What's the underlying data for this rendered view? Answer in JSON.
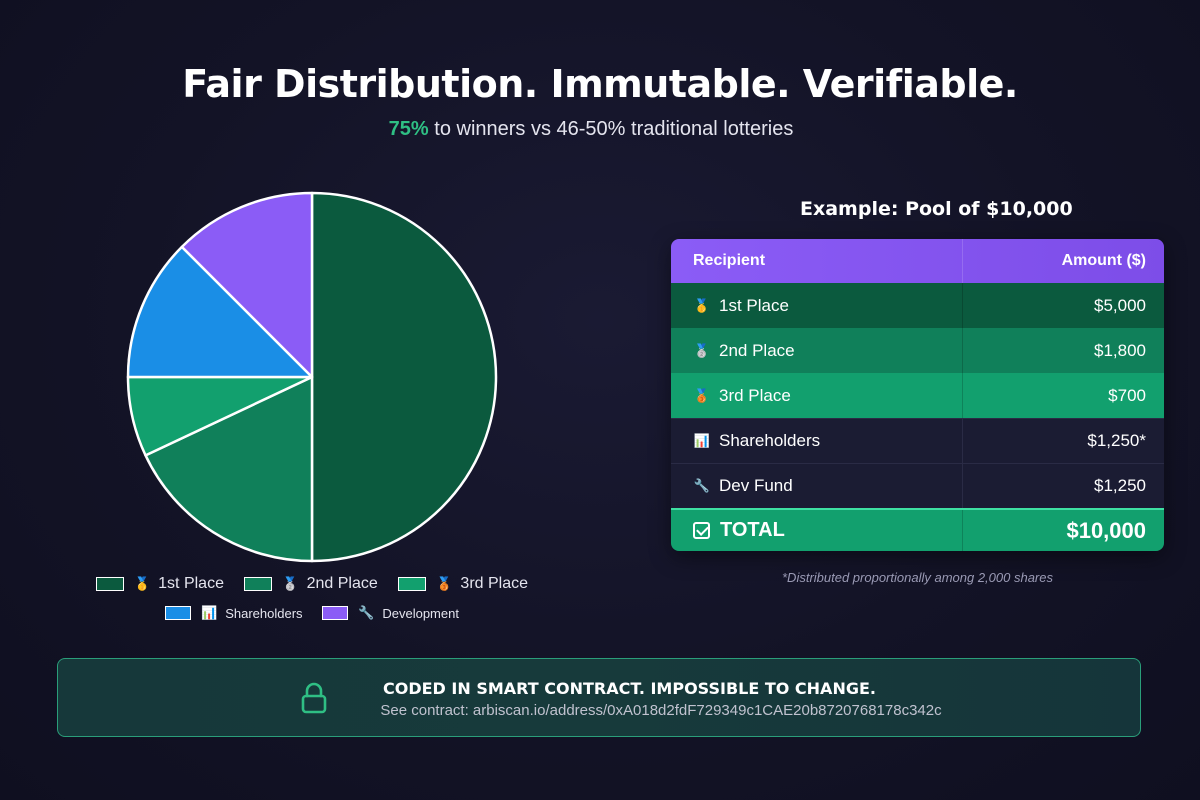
{
  "header": {
    "title": "Fair Distribution. Immutable. Verifiable.",
    "subtitle_highlight": "75%",
    "subtitle_rest": " to winners vs 46-50% traditional lotteries"
  },
  "chart_data": {
    "type": "pie",
    "title": "",
    "slices": [
      {
        "label": "1st Place",
        "value": 5000,
        "color": "#0b5a3e",
        "icon": "gold-medal-icon"
      },
      {
        "label": "2nd Place",
        "value": 1800,
        "color": "#10805a",
        "icon": "silver-medal-icon"
      },
      {
        "label": "3rd Place",
        "value": 700,
        "color": "#12a06e",
        "icon": "bronze-medal-icon"
      },
      {
        "label": "Shareholders",
        "value": 1250,
        "color": "#1a8ee6",
        "icon": "bar-chart-icon"
      },
      {
        "label": "Development",
        "value": 1250,
        "color": "#8b5cf6",
        "icon": "wrench-icon"
      }
    ],
    "legend_placement": "bottom"
  },
  "table": {
    "title": "Example: Pool of $10,000",
    "headers": {
      "recipient": "Recipient",
      "amount": "Amount ($)"
    },
    "rows": [
      {
        "icon": "🥇",
        "recipient": "1st Place",
        "amount": "$5,000"
      },
      {
        "icon": "🥈",
        "recipient": "2nd Place",
        "amount": "$1,800"
      },
      {
        "icon": "🥉",
        "recipient": "3rd Place",
        "amount": "$700"
      },
      {
        "icon": "📊",
        "recipient": "Shareholders",
        "amount": "$1,250*"
      },
      {
        "icon": "🔧",
        "recipient": "Dev Fund",
        "amount": "$1,250"
      }
    ],
    "total": {
      "label": "TOTAL",
      "amount": "$10,000"
    },
    "footnote": "*Distributed proportionally among 2,000 shares"
  },
  "banner": {
    "title": "CODED IN SMART CONTRACT. IMPOSSIBLE TO CHANGE.",
    "link": "See contract: arbiscan.io/address/0xA018d2fdF729349c1CAE20b8720768178c342c",
    "icon": "lock-icon",
    "accent": "#2fbf84"
  },
  "legend_icons": {
    "first": "🥇",
    "second": "🥈",
    "third": "🥉",
    "shareholders": "📊",
    "development": "🔧"
  }
}
